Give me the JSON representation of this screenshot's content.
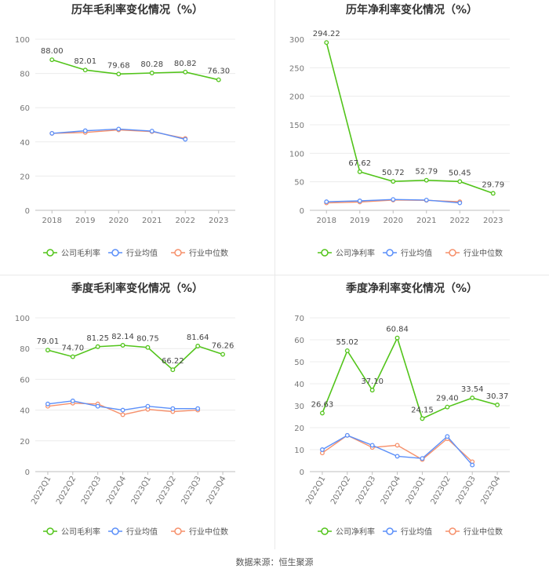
{
  "colors": {
    "company": "#52c41a",
    "avg": "#5b8ff9",
    "median": "#f6906b"
  },
  "source": "数据来源：恒生聚源",
  "chart_data": [
    {
      "type": "line",
      "title": "历年毛利率变化情况（%）",
      "categories": [
        "2018",
        "2019",
        "2020",
        "2021",
        "2022",
        "2023"
      ],
      "ylim": [
        0,
        100
      ],
      "yticks": [
        0,
        20,
        40,
        60,
        80,
        100
      ],
      "grid": true,
      "legend": "bottom",
      "series": [
        {
          "name": "公司毛利率",
          "values": [
            88.0,
            82.01,
            79.68,
            80.28,
            80.82,
            76.3
          ],
          "labels": [
            "88.00",
            "82.01",
            "79.68",
            "80.28",
            "80.82",
            "76.30"
          ]
        },
        {
          "name": "行业均值",
          "values": [
            45.0,
            46.5,
            47.5,
            46.3,
            41.5,
            null
          ]
        },
        {
          "name": "行业中位数",
          "values": [
            45.0,
            45.5,
            47.0,
            46.0,
            42.0,
            null
          ]
        }
      ]
    },
    {
      "type": "line",
      "title": "历年净利率变化情况（%）",
      "categories": [
        "2018",
        "2019",
        "2020",
        "2021",
        "2022",
        "2023"
      ],
      "ylim": [
        0,
        300
      ],
      "yticks": [
        0,
        50,
        100,
        150,
        200,
        250,
        300
      ],
      "grid": true,
      "legend": "bottom",
      "series": [
        {
          "name": "公司净利率",
          "values": [
            294.22,
            67.62,
            50.72,
            52.79,
            50.45,
            29.79
          ],
          "labels": [
            "294.22",
            "67.62",
            "50.72",
            "52.79",
            "50.45",
            "29.79"
          ]
        },
        {
          "name": "行业均值",
          "values": [
            15.0,
            16.5,
            19.0,
            18.0,
            13.0,
            null
          ]
        },
        {
          "name": "行业中位数",
          "values": [
            13.0,
            14.5,
            18.0,
            17.5,
            15.0,
            null
          ]
        }
      ]
    },
    {
      "type": "line",
      "title": "季度毛利率变化情况（%）",
      "categories": [
        "2022Q1",
        "2022Q2",
        "2022Q3",
        "2022Q4",
        "2023Q1",
        "2023Q2",
        "2023Q3",
        "2023Q4"
      ],
      "ylim": [
        0,
        100
      ],
      "yticks": [
        0,
        20,
        40,
        60,
        80,
        100
      ],
      "grid": true,
      "legend": "bottom",
      "series": [
        {
          "name": "公司毛利率",
          "values": [
            79.01,
            74.7,
            81.25,
            82.14,
            80.75,
            66.22,
            81.64,
            76.26
          ],
          "labels": [
            "79.01",
            "74.70",
            "81.25",
            "82.14",
            "80.75",
            "66.22",
            "81.64",
            "76.26"
          ]
        },
        {
          "name": "行业均值",
          "values": [
            44.0,
            46.0,
            42.5,
            40.0,
            42.5,
            41.0,
            41.0,
            null
          ]
        },
        {
          "name": "行业中位数",
          "values": [
            42.5,
            44.5,
            44.0,
            37.0,
            40.5,
            39.0,
            40.0,
            null
          ]
        }
      ]
    },
    {
      "type": "line",
      "title": "季度净利率变化情况（%）",
      "categories": [
        "2022Q1",
        "2022Q2",
        "2022Q3",
        "2022Q4",
        "2023Q1",
        "2023Q2",
        "2023Q3",
        "2023Q4"
      ],
      "ylim": [
        0,
        70
      ],
      "yticks": [
        0,
        10,
        20,
        30,
        40,
        50,
        60,
        70
      ],
      "grid": true,
      "legend": "bottom",
      "series": [
        {
          "name": "公司净利率",
          "values": [
            26.63,
            55.02,
            37.1,
            60.84,
            24.15,
            29.4,
            33.54,
            30.37
          ],
          "labels": [
            "26.63",
            "55.02",
            "37.10",
            "60.84",
            "24.15",
            "29.40",
            "33.54",
            "30.37"
          ]
        },
        {
          "name": "行业均值",
          "values": [
            10.0,
            16.5,
            12.0,
            7.0,
            6.0,
            16.0,
            3.0,
            null
          ]
        },
        {
          "name": "行业中位数",
          "values": [
            8.5,
            16.5,
            11.0,
            12.0,
            5.5,
            15.0,
            4.5,
            null
          ]
        }
      ]
    }
  ]
}
